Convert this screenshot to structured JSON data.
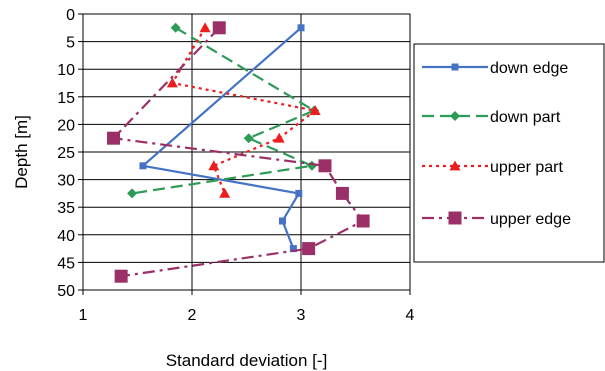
{
  "chart_data": {
    "type": "line",
    "xlabel": "Standard deviation [-]",
    "ylabel": "Depth [m]",
    "xlim": [
      1,
      4
    ],
    "ylim": [
      0,
      50
    ],
    "y_inverted": true,
    "x_ticks": [
      1,
      2,
      3,
      4
    ],
    "y_ticks": [
      0,
      5,
      10,
      15,
      20,
      25,
      30,
      35,
      40,
      45,
      50
    ],
    "grid": true,
    "legend_position": "right",
    "series": [
      {
        "name": "down edge",
        "color": "#4472c4",
        "line_style": "solid",
        "marker": "square-small",
        "points": [
          [
            3.0,
            2.5
          ],
          [
            1.55,
            27.5
          ],
          [
            2.98,
            32.5
          ],
          [
            2.83,
            37.5
          ],
          [
            2.93,
            42.5
          ]
        ]
      },
      {
        "name": "down part",
        "color": "#2e9a57",
        "line_style": "dash",
        "marker": "diamond",
        "points": [
          [
            1.85,
            2.5
          ],
          [
            3.12,
            17.5
          ],
          [
            2.52,
            22.5
          ],
          [
            3.1,
            27.5
          ],
          [
            1.45,
            32.5
          ]
        ]
      },
      {
        "name": "upper part",
        "color": "#ee1c1c",
        "line_style": "dot",
        "marker": "triangle",
        "points": [
          [
            2.12,
            2.5
          ],
          [
            1.82,
            12.5
          ],
          [
            3.13,
            17.5
          ],
          [
            2.8,
            22.5
          ],
          [
            2.2,
            27.5
          ],
          [
            2.3,
            32.5
          ]
        ]
      },
      {
        "name": "upper edge",
        "color": "#9b3068",
        "line_style": "dashdot",
        "marker": "square-large",
        "points": [
          [
            2.25,
            2.5
          ],
          [
            1.28,
            22.5
          ],
          [
            3.22,
            27.5
          ],
          [
            3.38,
            32.5
          ],
          [
            3.57,
            37.5
          ],
          [
            3.07,
            42.5
          ],
          [
            1.35,
            47.5
          ]
        ]
      }
    ]
  }
}
